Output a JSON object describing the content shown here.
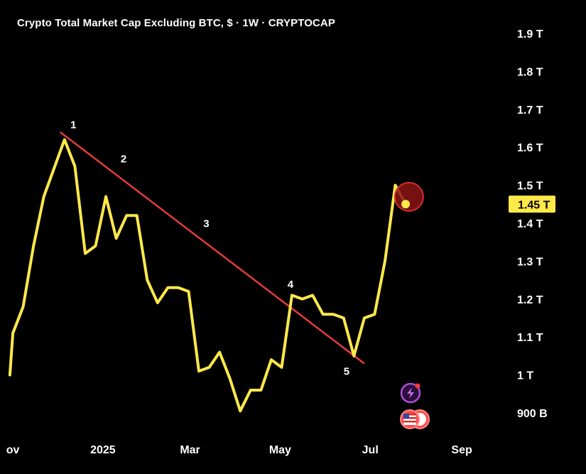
{
  "chart_data": {
    "type": "line",
    "title": "Crypto Total Market Cap Excluding BTC, $ · 1W · CRYPTOCAP",
    "y_unit": "USD",
    "y_ticks": [
      "1.9 T",
      "1.8 T",
      "1.7 T",
      "1.6 T",
      "1.5 T",
      "1.4 T",
      "1.3 T",
      "1.2 T",
      "1.1 T",
      "1 T",
      "900 B"
    ],
    "y_tick_values": [
      1.9,
      1.8,
      1.7,
      1.6,
      1.5,
      1.4,
      1.3,
      1.2,
      1.1,
      1.0,
      0.9
    ],
    "ylim": [
      0.86,
      1.96
    ],
    "x_ticks": [
      "ov",
      "2025",
      "Mar",
      "May",
      "Jul",
      "Sep"
    ],
    "x_tick_dates": [
      "2024-11-01",
      "2025-01-01",
      "2025-03-01",
      "2025-05-01",
      "2025-07-01",
      "2025-09-01"
    ],
    "xlim": [
      "2024-10-31",
      "2025-09-25"
    ],
    "grid": false,
    "series": [
      {
        "color": "#FFE94A",
        "points": [
          {
            "x": "2024-10-30",
            "y": 1.0
          },
          {
            "x": "2024-11-01",
            "y": 1.11
          },
          {
            "x": "2024-11-08",
            "y": 1.18
          },
          {
            "x": "2024-11-15",
            "y": 1.34
          },
          {
            "x": "2024-11-22",
            "y": 1.47
          },
          {
            "x": "2024-12-06",
            "y": 1.62
          },
          {
            "x": "2024-12-13",
            "y": 1.55
          },
          {
            "x": "2024-12-20",
            "y": 1.32
          },
          {
            "x": "2024-12-27",
            "y": 1.34
          },
          {
            "x": "2025-01-03",
            "y": 1.47
          },
          {
            "x": "2025-01-10",
            "y": 1.36
          },
          {
            "x": "2025-01-17",
            "y": 1.42
          },
          {
            "x": "2025-01-24",
            "y": 1.42
          },
          {
            "x": "2025-01-31",
            "y": 1.25
          },
          {
            "x": "2025-02-07",
            "y": 1.19
          },
          {
            "x": "2025-02-14",
            "y": 1.23
          },
          {
            "x": "2025-02-21",
            "y": 1.23
          },
          {
            "x": "2025-02-28",
            "y": 1.22
          },
          {
            "x": "2025-03-07",
            "y": 1.01
          },
          {
            "x": "2025-03-14",
            "y": 1.02
          },
          {
            "x": "2025-03-21",
            "y": 1.06
          },
          {
            "x": "2025-03-28",
            "y": 0.99
          },
          {
            "x": "2025-04-04",
            "y": 0.905
          },
          {
            "x": "2025-04-11",
            "y": 0.96
          },
          {
            "x": "2025-04-18",
            "y": 0.96
          },
          {
            "x": "2025-04-25",
            "y": 1.04
          },
          {
            "x": "2025-05-02",
            "y": 1.02
          },
          {
            "x": "2025-05-09",
            "y": 1.21
          },
          {
            "x": "2025-05-16",
            "y": 1.2
          },
          {
            "x": "2025-05-23",
            "y": 1.21
          },
          {
            "x": "2025-05-30",
            "y": 1.16
          },
          {
            "x": "2025-06-06",
            "y": 1.16
          },
          {
            "x": "2025-06-13",
            "y": 1.15
          },
          {
            "x": "2025-06-20",
            "y": 1.05
          },
          {
            "x": "2025-06-27",
            "y": 1.15
          },
          {
            "x": "2025-07-04",
            "y": 1.16
          },
          {
            "x": "2025-07-11",
            "y": 1.3
          },
          {
            "x": "2025-07-18",
            "y": 1.5
          },
          {
            "x": "2025-07-25",
            "y": 1.45
          }
        ]
      }
    ],
    "trendline": {
      "color": "#E53B3B",
      "points": [
        {
          "x": "2024-12-03",
          "y": 1.64
        },
        {
          "x": "2025-06-27",
          "y": 1.03
        }
      ]
    },
    "wave_labels": [
      {
        "text": "1",
        "x": "2024-12-12",
        "y": 1.65
      },
      {
        "text": "2",
        "x": "2025-01-15",
        "y": 1.56
      },
      {
        "text": "3",
        "x": "2025-03-12",
        "y": 1.39
      },
      {
        "text": "4",
        "x": "2025-05-08",
        "y": 1.23
      },
      {
        "text": "5",
        "x": "2025-06-15",
        "y": 1.0
      }
    ],
    "last_price_label": "1.45 T",
    "last_price_value": 1.45,
    "last_price_color": "#FFE94A",
    "highlight_circle_color": "#8B1414"
  },
  "overlay_icons": [
    "lightning-badge-icon",
    "us-flag-badge-icon"
  ]
}
